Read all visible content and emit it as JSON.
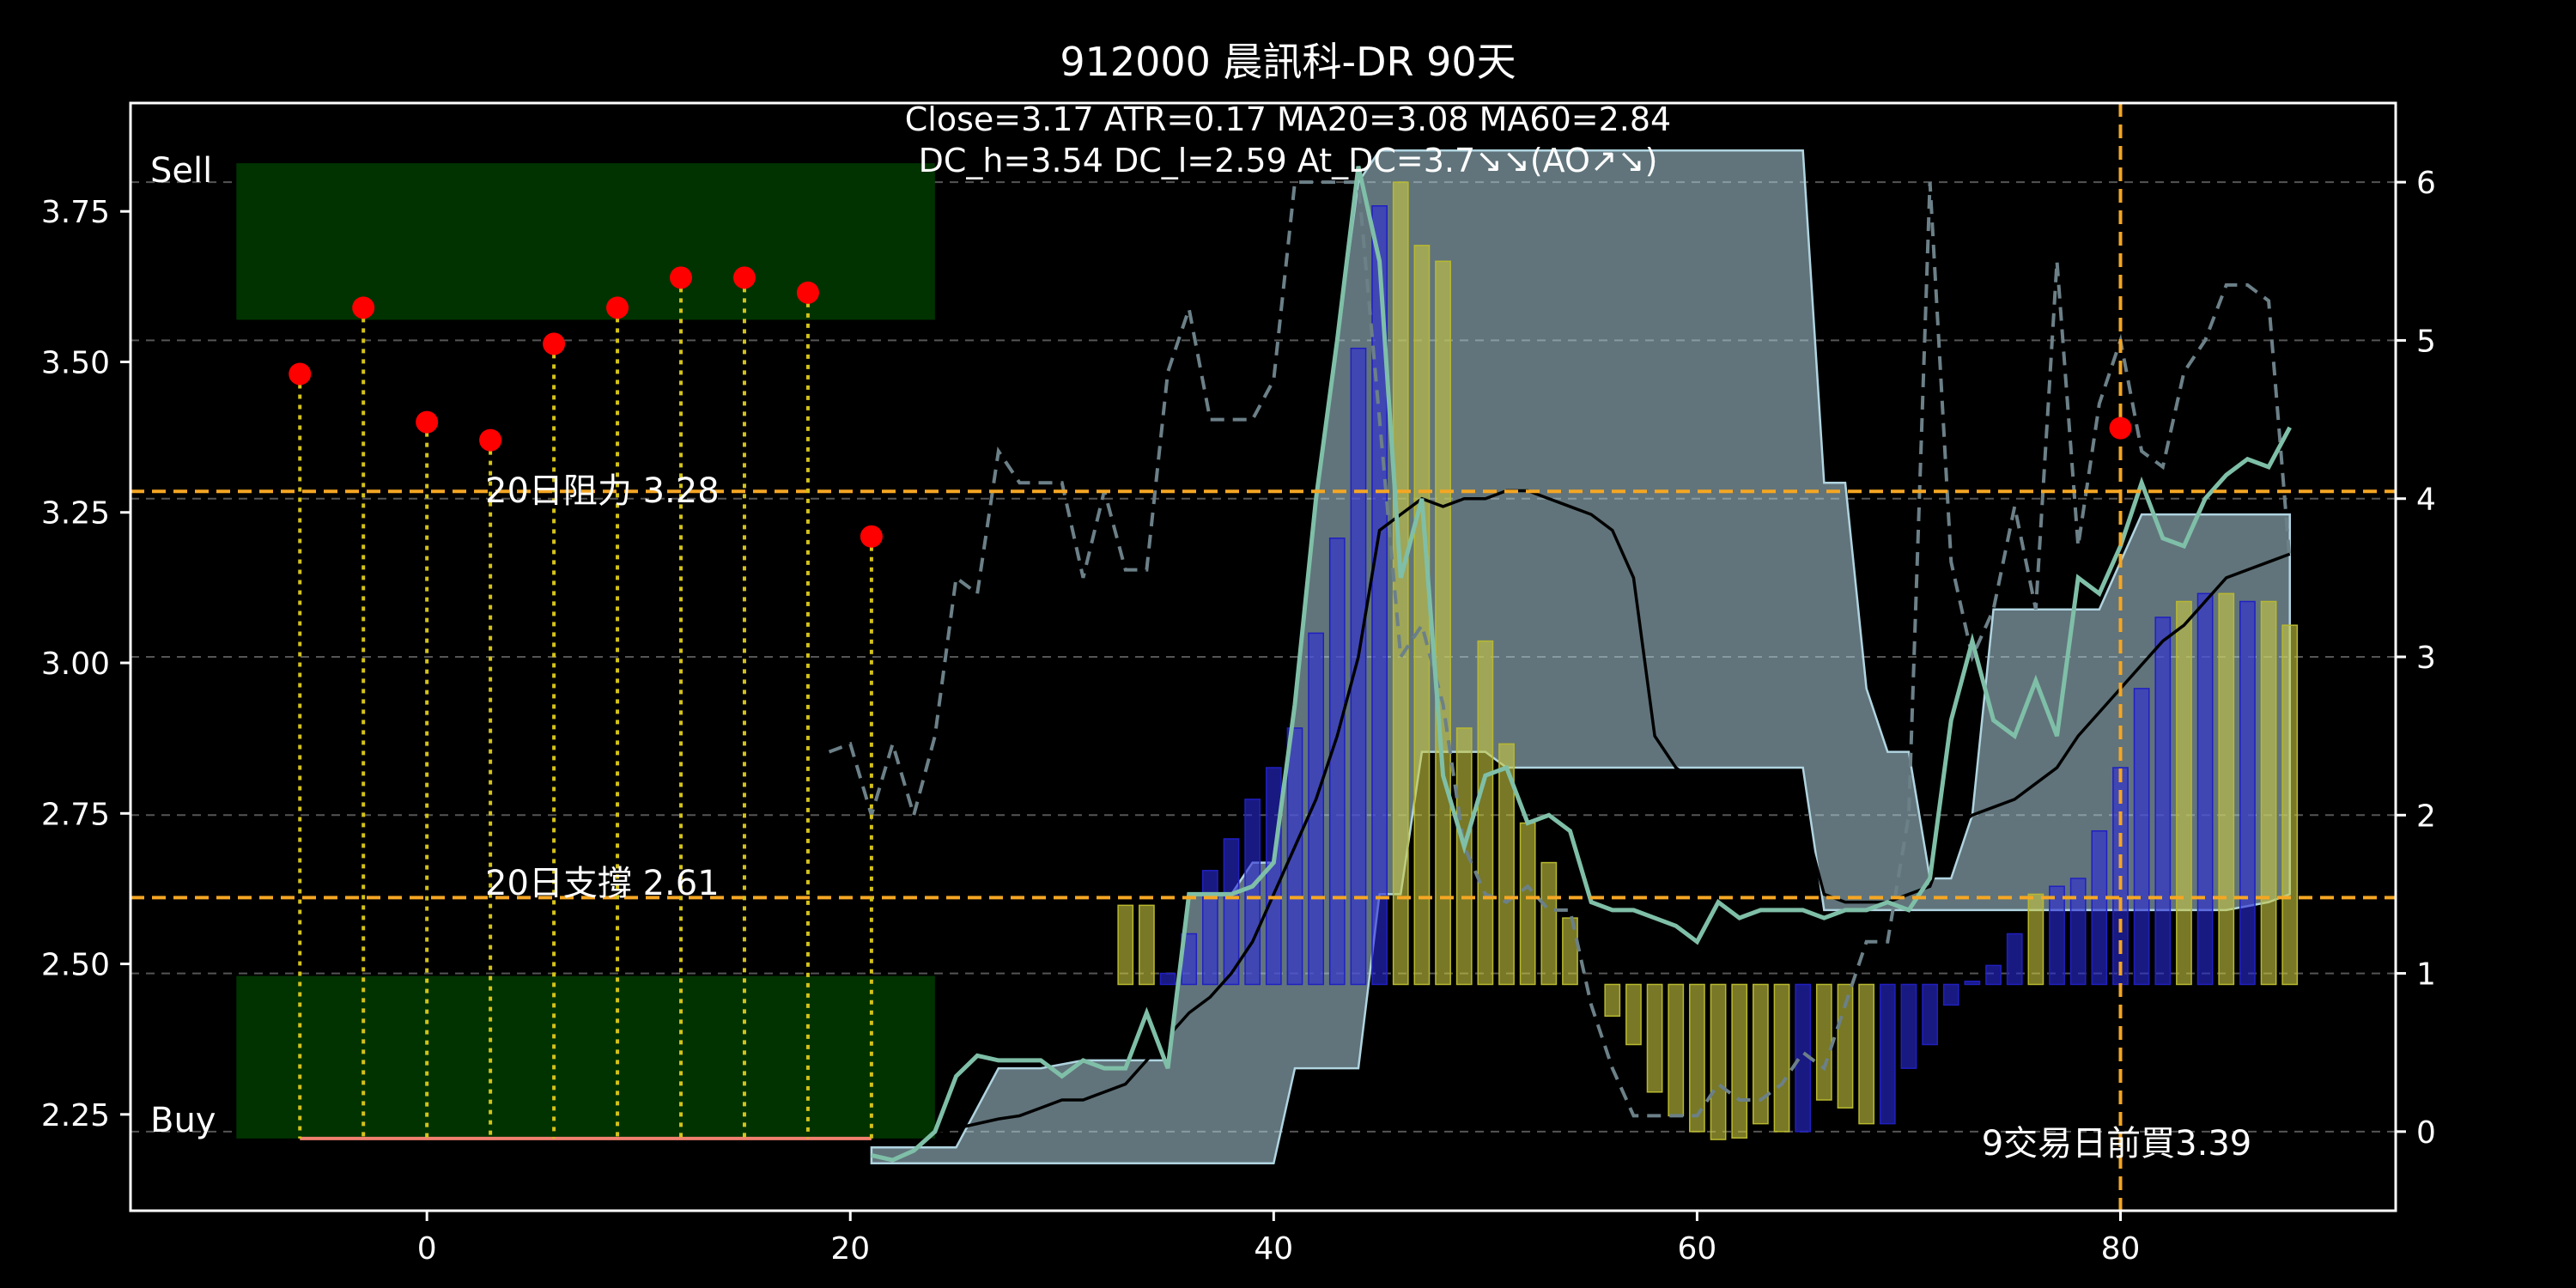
{
  "chart_data": {
    "type": "line",
    "title": "912000 晨訊科-DR 90天",
    "subtitle_lines": [
      "Close=3.17 ATR=0.17 MA20=3.08 MA60=2.84",
      "DC_h=3.54 DC_l=2.59 At_DC=3.7↘↘(AO↗↘)"
    ],
    "xlim": [
      -14,
      93
    ],
    "ylim": [
      2.09,
      3.93
    ],
    "y2lim": [
      -0.5,
      6.5
    ],
    "x_ticks": [
      0,
      20,
      40,
      60,
      80
    ],
    "y_ticks": [
      2.25,
      2.5,
      2.75,
      3.0,
      3.25,
      3.5,
      3.75
    ],
    "y2_ticks": [
      0,
      1,
      2,
      3,
      4,
      5,
      6
    ],
    "grid": "dashed horizontal at right-axis ticks",
    "colors": {
      "background": "#000000",
      "zone": "#003300",
      "signal": "#ff0000",
      "signal_stem": "#d4c21a",
      "level": "#f5a623",
      "band": "#b0d4e0",
      "close": "#7fbfa8",
      "ma": "#000000",
      "dashed": "#6c8088",
      "hist_blue": "#0000aa",
      "hist_yellow": "#909020",
      "base": "#f08070"
    },
    "zones": [
      {
        "label": "Sell",
        "x_range": [
          -9,
          24
        ],
        "y_range": [
          3.57,
          3.83
        ]
      },
      {
        "label": "Buy",
        "x_range": [
          -9,
          24
        ],
        "y_range": [
          2.21,
          2.48
        ]
      }
    ],
    "level_lines": [
      {
        "label": "20日阻力 3.28",
        "y": 3.285
      },
      {
        "label": "20日支撐 2.61",
        "y": 2.61
      }
    ],
    "vertical_line": {
      "x": 80,
      "label": "9交易日前買3.39"
    },
    "signal_points": {
      "x": [
        -6,
        -3,
        0,
        3,
        6,
        9,
        12,
        15,
        18,
        21,
        80
      ],
      "y": [
        3.48,
        3.59,
        3.4,
        3.37,
        3.53,
        3.59,
        3.64,
        3.64,
        3.615,
        3.21,
        3.39
      ],
      "stem_base": 2.21
    },
    "base_line": {
      "x_range": [
        -6,
        21
      ],
      "y": 2.21
    },
    "series": [
      {
        "name": "",
        "role": "close",
        "axis": "right",
        "x": [
          21,
          22,
          23,
          24,
          25,
          26,
          27,
          28,
          29,
          30,
          31,
          32,
          33,
          34,
          35,
          36,
          37,
          38,
          39,
          40,
          41,
          42,
          43,
          44,
          45,
          46,
          47,
          48,
          49,
          50,
          51,
          52,
          53,
          54,
          55,
          56,
          57,
          58,
          59,
          60,
          61,
          62,
          63,
          64,
          65,
          66,
          67,
          68,
          69,
          70,
          71,
          72,
          73,
          74,
          75,
          76,
          77,
          78,
          79,
          80,
          81,
          82,
          83,
          84,
          85,
          86,
          87,
          88
        ],
        "y": [
          -0.15,
          -0.18,
          -0.12,
          0.0,
          0.35,
          0.48,
          0.45,
          0.45,
          0.45,
          0.35,
          0.45,
          0.4,
          0.4,
          0.75,
          0.4,
          1.5,
          1.5,
          1.5,
          1.55,
          1.7,
          2.7,
          4.0,
          5.0,
          6.1,
          5.5,
          3.5,
          4.0,
          2.25,
          1.8,
          2.25,
          2.3,
          1.95,
          2.0,
          1.9,
          1.45,
          1.4,
          1.4,
          1.35,
          1.3,
          1.2,
          1.45,
          1.35,
          1.4,
          1.4,
          1.4,
          1.35,
          1.4,
          1.4,
          1.45,
          1.4,
          1.6,
          2.6,
          3.1,
          2.6,
          2.5,
          2.85,
          2.5,
          3.5,
          3.4,
          3.7,
          4.1,
          3.75,
          3.7,
          4.0,
          4.15,
          4.25,
          4.2,
          4.45
        ]
      },
      {
        "name": "",
        "role": "ma",
        "axis": "right",
        "x": [
          24,
          25,
          26,
          27,
          28,
          29,
          30,
          31,
          32,
          33,
          34,
          35,
          36,
          37,
          38,
          39,
          40,
          41,
          42,
          43,
          44,
          45,
          46,
          47,
          48,
          49,
          50,
          51,
          52,
          53,
          54,
          55,
          56,
          57,
          58,
          59,
          60,
          61,
          62,
          63,
          64,
          65,
          66,
          67,
          68,
          69,
          70,
          71,
          72,
          73,
          74,
          75,
          76,
          77,
          78,
          79,
          80,
          81,
          82,
          83,
          84,
          85,
          86,
          87,
          88
        ],
        "y": [
          0.0,
          0.02,
          0.05,
          0.08,
          0.1,
          0.15,
          0.2,
          0.2,
          0.25,
          0.3,
          0.45,
          0.6,
          0.75,
          0.85,
          1.0,
          1.2,
          1.5,
          1.8,
          2.1,
          2.5,
          3.0,
          3.8,
          3.9,
          4.0,
          3.95,
          4.0,
          4.0,
          4.05,
          4.05,
          4.0,
          3.95,
          3.9,
          3.8,
          3.5,
          2.5,
          2.3,
          2.2,
          2.2,
          2.2,
          2.2,
          2.1,
          2.0,
          1.5,
          1.45,
          1.45,
          1.45,
          1.5,
          1.55,
          1.9,
          2.0,
          2.05,
          2.1,
          2.2,
          2.3,
          2.5,
          2.65,
          2.8,
          2.95,
          3.1,
          3.2,
          3.35,
          3.5,
          3.55,
          3.6,
          3.65
        ]
      },
      {
        "name": "",
        "role": "dashed",
        "axis": "right",
        "x": [
          19,
          20,
          21,
          22,
          23,
          24,
          25,
          26,
          27,
          28,
          29,
          30,
          31,
          32,
          33,
          34,
          35,
          36,
          37,
          38,
          39,
          40,
          41,
          42,
          43,
          44,
          45,
          46,
          47,
          48,
          49,
          50,
          51,
          52,
          53,
          54,
          55,
          56,
          57,
          58,
          59,
          60,
          61,
          62,
          63,
          64,
          65,
          66,
          67,
          68,
          69,
          70,
          71,
          72,
          73,
          74,
          75,
          76,
          77,
          78,
          79,
          80,
          81,
          82,
          83,
          84,
          85,
          86,
          87,
          88
        ],
        "y": [
          2.4,
          2.45,
          2.0,
          2.45,
          2.0,
          2.5,
          3.5,
          3.4,
          4.3,
          4.1,
          4.1,
          4.1,
          3.5,
          4.05,
          3.55,
          3.55,
          4.8,
          5.2,
          4.5,
          4.5,
          4.5,
          4.75,
          6.0,
          6.0,
          6.0,
          6.0,
          4.5,
          3.0,
          3.2,
          2.7,
          1.8,
          1.5,
          1.45,
          1.55,
          1.4,
          1.4,
          0.8,
          0.4,
          0.1,
          0.1,
          0.1,
          0.1,
          0.3,
          0.2,
          0.2,
          0.3,
          0.5,
          0.4,
          0.8,
          1.2,
          1.2,
          2.0,
          6.0,
          3.6,
          3.0,
          3.3,
          3.95,
          3.3,
          5.5,
          3.7,
          4.6,
          5.0,
          4.3,
          4.2,
          4.8,
          5.0,
          5.35,
          5.35,
          5.25,
          3.6
        ]
      },
      {
        "name": "",
        "role": "band_upper",
        "axis": "right",
        "x": [
          21,
          23,
          25,
          27,
          28,
          29,
          31,
          32,
          33,
          34,
          35,
          36,
          38,
          39,
          40,
          41,
          42,
          43,
          44,
          45,
          46,
          47,
          48,
          50,
          51,
          52,
          54,
          57,
          60,
          62,
          64,
          65,
          66,
          67,
          68,
          69,
          70,
          71,
          72,
          73,
          74,
          75,
          77,
          79,
          81,
          83,
          85,
          87,
          88
        ],
        "y": [
          -0.1,
          -0.1,
          -0.1,
          0.4,
          0.4,
          0.4,
          0.45,
          0.45,
          0.45,
          0.45,
          0.45,
          1.5,
          1.5,
          1.7,
          1.7,
          2.7,
          4.0,
          5.0,
          6.0,
          6.2,
          6.2,
          6.2,
          6.2,
          6.2,
          6.2,
          6.2,
          6.2,
          6.2,
          6.2,
          6.2,
          6.2,
          6.2,
          4.1,
          4.1,
          2.8,
          2.4,
          2.4,
          1.6,
          1.6,
          2.0,
          3.3,
          3.3,
          3.3,
          3.3,
          3.9,
          3.9,
          3.9,
          3.9,
          3.9
        ]
      },
      {
        "name": "",
        "role": "band_lower",
        "axis": "right",
        "x": [
          21,
          23,
          25,
          27,
          28,
          29,
          31,
          32,
          33,
          34,
          35,
          36,
          38,
          39,
          40,
          41,
          42,
          43,
          44,
          45,
          46,
          47,
          48,
          50,
          51,
          52,
          54,
          57,
          60,
          62,
          64,
          65,
          66,
          67,
          68,
          69,
          70,
          71,
          72,
          73,
          74,
          75,
          77,
          79,
          81,
          83,
          85,
          87,
          88
        ],
        "y": [
          -0.2,
          -0.2,
          -0.2,
          -0.2,
          -0.2,
          -0.2,
          -0.2,
          -0.2,
          -0.2,
          -0.2,
          -0.2,
          -0.2,
          -0.2,
          -0.2,
          -0.2,
          0.4,
          0.4,
          0.4,
          0.4,
          1.5,
          1.5,
          2.4,
          2.4,
          2.4,
          2.3,
          2.3,
          2.3,
          2.3,
          2.3,
          2.3,
          2.3,
          2.3,
          1.4,
          1.4,
          1.4,
          1.4,
          1.4,
          1.4,
          1.4,
          1.4,
          1.4,
          1.4,
          1.4,
          1.4,
          1.4,
          1.4,
          1.4,
          1.45,
          1.5
        ]
      }
    ],
    "histogram": {
      "axis": "right",
      "baseline": 0.93,
      "bar_width": 0.7,
      "x": [
        33,
        34,
        35,
        36,
        37,
        38,
        39,
        40,
        41,
        42,
        43,
        44,
        45,
        46,
        47,
        48,
        49,
        50,
        51,
        52,
        53,
        54,
        56,
        57,
        58,
        59,
        60,
        61,
        62,
        63,
        64,
        65,
        66,
        67,
        68,
        69,
        70,
        71,
        72,
        73,
        74,
        75,
        76,
        77,
        78,
        79,
        80,
        81,
        82,
        83,
        84,
        85,
        86,
        87,
        88
      ],
      "y": [
        1.43,
        1.43,
        1.0,
        1.25,
        1.65,
        1.85,
        2.1,
        2.3,
        2.55,
        3.15,
        3.75,
        4.95,
        5.85,
        6.0,
        5.6,
        5.5,
        2.55,
        3.1,
        2.45,
        1.95,
        1.7,
        1.35,
        0.73,
        0.55,
        0.25,
        0.1,
        0.0,
        -0.05,
        -0.04,
        0.05,
        0.0,
        0.0,
        0.2,
        0.15,
        0.05,
        0.05,
        0.4,
        0.55,
        0.8,
        0.95,
        1.05,
        1.25,
        1.5,
        1.55,
        1.6,
        1.9,
        2.3,
        2.8,
        3.25,
        3.35,
        3.4,
        3.4,
        3.35,
        3.35,
        3.2
      ],
      "colors": [
        "y",
        "y",
        "b",
        "b",
        "b",
        "b",
        "b",
        "b",
        "b",
        "b",
        "b",
        "b",
        "b",
        "y",
        "y",
        "y",
        "y",
        "y",
        "y",
        "y",
        "y",
        "y",
        "y",
        "y",
        "y",
        "y",
        "y",
        "y",
        "y",
        "y",
        "y",
        "b",
        "y",
        "y",
        "y",
        "b",
        "b",
        "b",
        "b",
        "b",
        "b",
        "b",
        "y",
        "b",
        "b",
        "b",
        "b",
        "b",
        "b",
        "y",
        "b",
        "y",
        "b",
        "y",
        "y"
      ]
    },
    "corner_labels": [
      "Sell",
      "Buy"
    ]
  }
}
